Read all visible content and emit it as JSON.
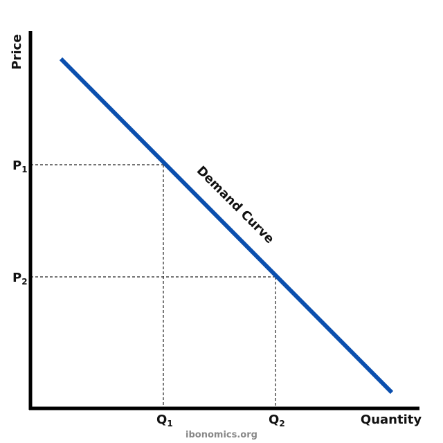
{
  "axes": {
    "y_label": "Price",
    "x_label": "Quantity"
  },
  "price_levels": [
    {
      "letter": "P",
      "subscript": "1"
    },
    {
      "letter": "P",
      "subscript": "2"
    }
  ],
  "quantity_levels": [
    {
      "letter": "Q",
      "subscript": "1"
    },
    {
      "letter": "Q",
      "subscript": "2"
    }
  ],
  "curve_label": "Demand Curve",
  "footer": "ibonomics.org"
}
